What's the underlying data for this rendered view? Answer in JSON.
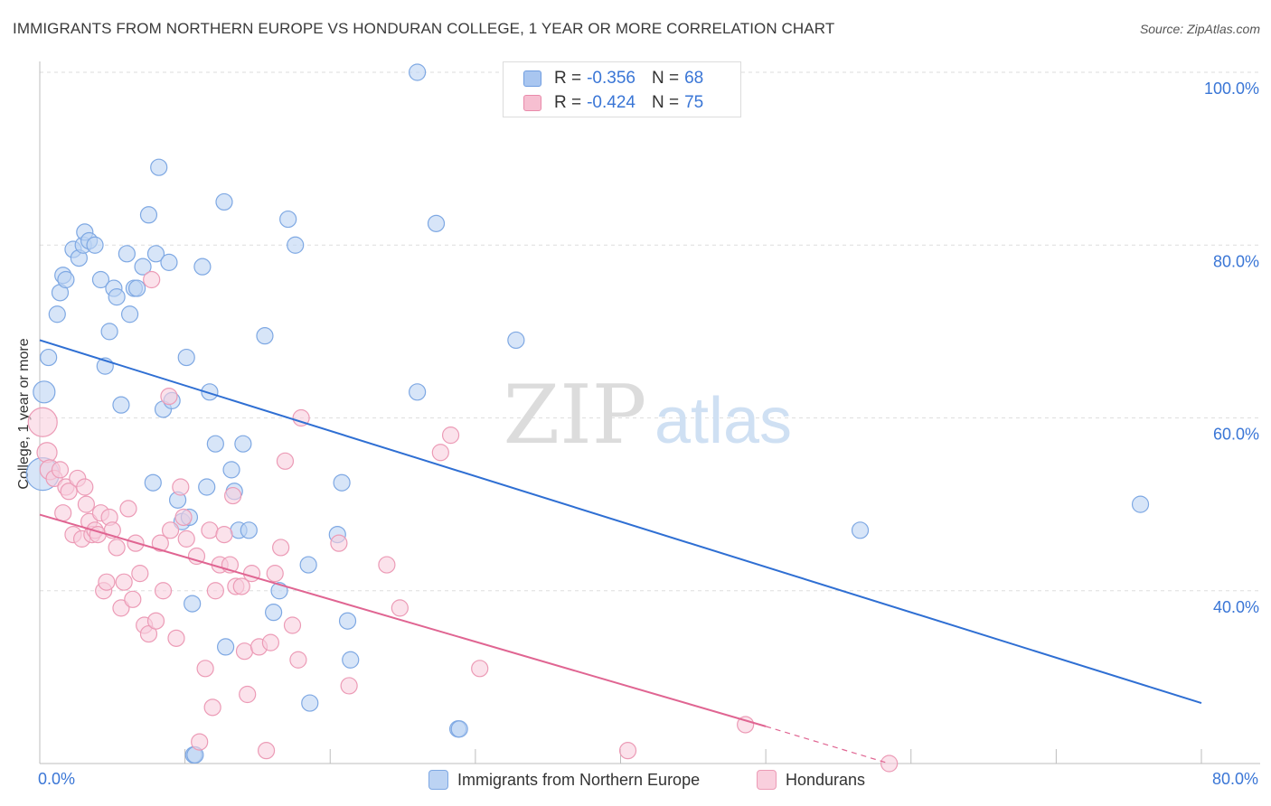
{
  "title": "IMMIGRANTS FROM NORTHERN EUROPE VS HONDURAN COLLEGE, 1 YEAR OR MORE CORRELATION CHART",
  "source": "Source: ZipAtlas.com",
  "watermark": {
    "zip": "ZIP",
    "atlas": "atlas"
  },
  "legend_top": [
    {
      "r_label": "R =",
      "r_value": "-0.356",
      "n_label": "N =",
      "n_value": "68",
      "color": "#a9c6f0",
      "border": "#6f9de0"
    },
    {
      "r_label": "R =",
      "r_value": "-0.424",
      "n_label": "N =",
      "n_value": "75",
      "color": "#f6bfd1",
      "border": "#e98aaa"
    }
  ],
  "legend_bottom": [
    {
      "label": "Immigrants from Northern Europe",
      "color": "#bcd3f3",
      "border": "#7ea8e3"
    },
    {
      "label": "Hondurans",
      "color": "#f9cfdd",
      "border": "#ec9bb6"
    }
  ],
  "chart_data": {
    "type": "scatter",
    "title": "IMMIGRANTS FROM NORTHERN EUROPE VS HONDURAN COLLEGE, 1 YEAR OR MORE CORRELATION CHART",
    "xlabel": "",
    "ylabel": "College, 1 year or more",
    "xlim": [
      0,
      80
    ],
    "ylim": [
      20,
      100
    ],
    "x_ticks": [
      "0.0%",
      "80.0%"
    ],
    "y_ticks": [
      "100.0%",
      "80.0%",
      "60.0%",
      "40.0%"
    ],
    "y_tick_values": [
      100,
      80,
      60,
      40
    ],
    "grid": true,
    "series": [
      {
        "name": "Immigrants from Northern Europe",
        "color": "#7ea8e3",
        "fill": "#bcd3f3",
        "trend_color": "#2f6fd3",
        "trend": {
          "x": [
            0,
            80
          ],
          "y": [
            69,
            27
          ]
        },
        "points": [
          [
            0.2,
            53.5,
            18
          ],
          [
            0.3,
            63,
            12
          ],
          [
            0.6,
            67,
            9
          ],
          [
            1.2,
            72,
            9
          ],
          [
            1.4,
            74.5,
            9
          ],
          [
            1.6,
            76.5,
            9
          ],
          [
            1.8,
            76,
            9
          ],
          [
            2.3,
            79.5,
            9
          ],
          [
            2.7,
            78.5,
            9
          ],
          [
            3.0,
            80,
            9
          ],
          [
            3.1,
            81.5,
            9
          ],
          [
            3.4,
            80.5,
            9
          ],
          [
            3.8,
            80,
            9
          ],
          [
            4.2,
            76,
            9
          ],
          [
            4.5,
            66,
            9
          ],
          [
            4.8,
            70,
            9
          ],
          [
            5.1,
            75,
            9
          ],
          [
            5.3,
            74,
            9
          ],
          [
            5.6,
            61.5,
            9
          ],
          [
            6.0,
            79,
            9
          ],
          [
            6.2,
            72,
            9
          ],
          [
            6.5,
            75,
            9
          ],
          [
            6.7,
            75,
            9
          ],
          [
            7.1,
            77.5,
            9
          ],
          [
            7.5,
            83.5,
            9
          ],
          [
            7.8,
            52.5,
            9
          ],
          [
            8.0,
            79,
            9
          ],
          [
            8.2,
            89,
            9
          ],
          [
            8.5,
            61,
            9
          ],
          [
            8.9,
            78,
            9
          ],
          [
            9.1,
            62,
            9
          ],
          [
            9.5,
            50.5,
            9
          ],
          [
            9.8,
            48,
            9
          ],
          [
            10.1,
            67,
            9
          ],
          [
            10.3,
            48.5,
            9
          ],
          [
            10.5,
            38.5,
            9
          ],
          [
            10.6,
            21,
            9
          ],
          [
            10.7,
            21,
            9
          ],
          [
            11.2,
            77.5,
            9
          ],
          [
            11.5,
            52,
            9
          ],
          [
            11.7,
            63,
            9
          ],
          [
            12.1,
            57,
            9
          ],
          [
            12.7,
            85,
            9
          ],
          [
            12.8,
            33.5,
            9
          ],
          [
            13.2,
            54,
            9
          ],
          [
            13.4,
            51.5,
            9
          ],
          [
            13.7,
            47,
            9
          ],
          [
            14.0,
            57,
            9
          ],
          [
            14.4,
            47,
            9
          ],
          [
            15.5,
            69.5,
            9
          ],
          [
            16.1,
            37.5,
            9
          ],
          [
            16.5,
            40,
            9
          ],
          [
            17.1,
            83,
            9
          ],
          [
            17.6,
            80,
            9
          ],
          [
            18.5,
            43,
            9
          ],
          [
            18.6,
            27,
            9
          ],
          [
            20.5,
            46.5,
            9
          ],
          [
            20.8,
            52.5,
            9
          ],
          [
            21.2,
            36.5,
            9
          ],
          [
            21.4,
            32,
            9
          ],
          [
            26.0,
            100,
            9
          ],
          [
            26.0,
            63,
            9
          ],
          [
            27.3,
            82.5,
            9
          ],
          [
            28.8,
            24,
            9
          ],
          [
            28.9,
            24,
            9
          ],
          [
            32.8,
            69,
            9
          ],
          [
            56.5,
            47,
            9
          ],
          [
            75.8,
            50,
            9
          ]
        ]
      },
      {
        "name": "Hondurans",
        "color": "#ec9bb6",
        "fill": "#f9cfdd",
        "trend_color": "#e06592",
        "trend": {
          "x": [
            0,
            50
          ],
          "y": [
            48.8,
            24.3
          ]
        },
        "trend_dashed": {
          "x": [
            50,
            58.5
          ],
          "y": [
            24.3,
            20
          ]
        },
        "points": [
          [
            0.2,
            59.5,
            16
          ],
          [
            0.5,
            56,
            11
          ],
          [
            0.7,
            54,
            11
          ],
          [
            1.0,
            53,
            9
          ],
          [
            1.4,
            54,
            9
          ],
          [
            1.6,
            49,
            9
          ],
          [
            1.8,
            52,
            9
          ],
          [
            2.0,
            51.5,
            9
          ],
          [
            2.3,
            46.5,
            9
          ],
          [
            2.6,
            53,
            9
          ],
          [
            2.9,
            46,
            9
          ],
          [
            3.1,
            52,
            9
          ],
          [
            3.2,
            50,
            9
          ],
          [
            3.4,
            48,
            9
          ],
          [
            3.6,
            46.5,
            9
          ],
          [
            3.8,
            47,
            9
          ],
          [
            4.0,
            46.5,
            9
          ],
          [
            4.2,
            49,
            9
          ],
          [
            4.4,
            40,
            9
          ],
          [
            4.6,
            41,
            9
          ],
          [
            4.8,
            48.5,
            9
          ],
          [
            5.0,
            47,
            9
          ],
          [
            5.3,
            45,
            9
          ],
          [
            5.6,
            38,
            9
          ],
          [
            5.8,
            41,
            9
          ],
          [
            6.1,
            49.5,
            9
          ],
          [
            6.4,
            39,
            9
          ],
          [
            6.6,
            45.5,
            9
          ],
          [
            6.9,
            42,
            9
          ],
          [
            7.2,
            36,
            9
          ],
          [
            7.5,
            35,
            9
          ],
          [
            7.7,
            76,
            9
          ],
          [
            8.0,
            36.5,
            9
          ],
          [
            8.3,
            45.5,
            9
          ],
          [
            8.5,
            40,
            9
          ],
          [
            8.9,
            62.5,
            9
          ],
          [
            9.0,
            47,
            9
          ],
          [
            9.4,
            34.5,
            9
          ],
          [
            9.7,
            52,
            9
          ],
          [
            9.9,
            48.5,
            9
          ],
          [
            10.1,
            46,
            9
          ],
          [
            10.8,
            44,
            9
          ],
          [
            11.0,
            22.5,
            9
          ],
          [
            11.4,
            31,
            9
          ],
          [
            11.7,
            47,
            9
          ],
          [
            11.9,
            26.5,
            9
          ],
          [
            12.1,
            40,
            9
          ],
          [
            12.4,
            43,
            9
          ],
          [
            12.7,
            46.5,
            9
          ],
          [
            13.1,
            43,
            9
          ],
          [
            13.3,
            51,
            9
          ],
          [
            13.5,
            40.5,
            9
          ],
          [
            13.9,
            40.5,
            9
          ],
          [
            14.1,
            33,
            9
          ],
          [
            14.3,
            28,
            9
          ],
          [
            14.6,
            42,
            9
          ],
          [
            15.1,
            33.5,
            9
          ],
          [
            15.6,
            21.5,
            9
          ],
          [
            15.9,
            34,
            9
          ],
          [
            16.2,
            42,
            9
          ],
          [
            16.6,
            45,
            9
          ],
          [
            16.9,
            55,
            9
          ],
          [
            17.4,
            36,
            9
          ],
          [
            17.8,
            32,
            9
          ],
          [
            18.0,
            60,
            9
          ],
          [
            20.6,
            45.5,
            9
          ],
          [
            21.3,
            29,
            9
          ],
          [
            23.9,
            43,
            9
          ],
          [
            24.8,
            38,
            9
          ],
          [
            27.6,
            56,
            9
          ],
          [
            28.3,
            58,
            9
          ],
          [
            30.3,
            31,
            9
          ],
          [
            40.5,
            21.5,
            9
          ],
          [
            48.6,
            24.5,
            9
          ],
          [
            58.5,
            20,
            9
          ]
        ]
      }
    ]
  }
}
